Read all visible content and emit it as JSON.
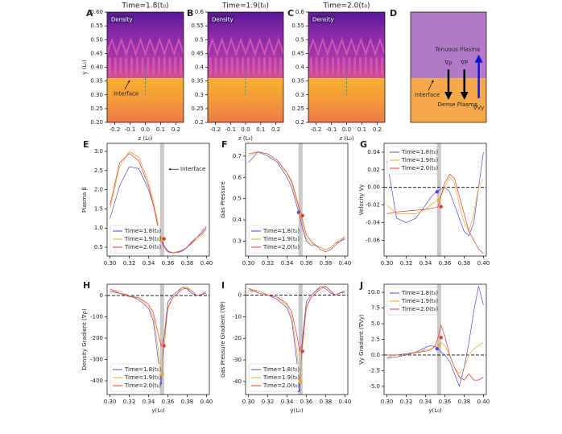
{
  "chart_data": [
    {
      "type": "image",
      "panel": "A",
      "title": "Time=1.8(t₀)",
      "label": "Density",
      "annotation": "Interface",
      "xlabel": "z (L₀)",
      "ylabel": "y (L₀)",
      "xlim": [
        -0.25,
        0.25
      ],
      "xticks": [
        -0.2,
        -0.1,
        {
          "value": 0,
          "label": "0.0"
        },
        0.1,
        0.2
      ],
      "ylim": [
        0.2,
        0.6
      ],
      "yticks": [
        {
          "value": 0.2,
          "label": "0.20"
        },
        0.25,
        {
          "value": 0.3,
          "label": "0.30"
        },
        0.35,
        {
          "value": 0.4,
          "label": "0.40"
        },
        0.45,
        {
          "value": 0.5,
          "label": "0.50"
        },
        0.55,
        {
          "value": 0.6,
          "label": "0.60"
        }
      ]
    },
    {
      "type": "image",
      "panel": "B",
      "title": "Time=1.9(t₀)",
      "label": "Density",
      "xlabel": "z (L₀)",
      "xlim": [
        -0.25,
        0.25
      ],
      "xticks": [
        -0.2,
        -0.1,
        {
          "value": 0,
          "label": "0.0"
        },
        0.1,
        0.2
      ],
      "ylim": [
        0.2,
        0.6
      ],
      "yticks": [
        0.2,
        0.25,
        0.3,
        0.35,
        0.4,
        0.45,
        0.5,
        0.55,
        0.6
      ]
    },
    {
      "type": "image",
      "panel": "C",
      "title": "Time=2.0(t₀)",
      "label": "Density",
      "xlabel": "z (L₀)",
      "xlim": [
        -0.25,
        0.25
      ],
      "xticks": [
        -0.2,
        -0.1,
        {
          "value": 0,
          "label": "0.0"
        },
        0.1,
        0.2
      ],
      "ylim": [
        0.2,
        0.6
      ],
      "yticks": [
        0.2,
        0.25,
        0.3,
        0.35,
        0.4,
        0.45,
        0.5,
        0.55,
        0.6
      ]
    },
    {
      "type": "diagram",
      "panel": "D",
      "top": "Tenuous Plasma",
      "bottom": "Dense Plasma",
      "annotation": "Interface",
      "grad_rho": "∇ρ",
      "grad_p": "∇P",
      "grad_v": "∇Vy"
    },
    {
      "type": "line",
      "panel": "E",
      "ylabel": "Plasma β",
      "annotation": "Interface",
      "legend": "lower left",
      "highlight_x": 0.354,
      "xlim": [
        0.297,
        0.403
      ],
      "xticks": [
        {
          "value": 0.3,
          "label": "0.30"
        },
        0.32,
        0.34,
        0.36,
        0.38,
        {
          "value": 0.4,
          "label": "0.40"
        }
      ],
      "ylim": [
        0.27,
        3.21
      ],
      "yticks": [
        0.5,
        {
          "value": 1,
          "label": "1.0"
        },
        1.5,
        {
          "value": 2,
          "label": "2.0"
        },
        2.5,
        {
          "value": 3,
          "label": "3.0"
        }
      ],
      "x": [
        0.3,
        0.31,
        0.32,
        0.33,
        0.34,
        0.345,
        0.35,
        0.353,
        0.356,
        0.36,
        0.365,
        0.37,
        0.375,
        0.38,
        0.385,
        0.39,
        0.395,
        0.4
      ],
      "series": [
        {
          "name": "Time=1.8(t₀)",
          "color": "#4a4ae8",
          "values": [
            1.25,
            2.1,
            2.6,
            2.55,
            2.0,
            1.6,
            1.0,
            0.7,
            0.5,
            0.38,
            0.35,
            0.38,
            0.42,
            0.5,
            0.65,
            0.75,
            0.85,
            1.0
          ],
          "point": {
            "x": 0.352,
            "y": 0.7
          }
        },
        {
          "name": "Time=1.9(t₀)",
          "color": "#f5a623",
          "values": [
            1.5,
            2.6,
            3.0,
            2.85,
            2.2,
            1.7,
            1.1,
            0.75,
            0.55,
            0.4,
            0.36,
            0.37,
            0.4,
            0.5,
            0.6,
            0.7,
            0.8,
            0.95
          ],
          "point": {
            "x": 0.354,
            "y": 0.7
          }
        },
        {
          "name": "Time=2.0(t₀)",
          "color": "#e8382e",
          "values": [
            1.6,
            2.7,
            2.95,
            2.75,
            2.1,
            1.6,
            1.0,
            0.72,
            0.55,
            0.4,
            0.35,
            0.36,
            0.4,
            0.5,
            0.62,
            0.75,
            0.9,
            1.05
          ],
          "point": {
            "x": 0.356,
            "y": 0.72
          }
        }
      ]
    },
    {
      "type": "line",
      "panel": "F",
      "ylabel": "Gas Pressure",
      "legend": "lower left",
      "highlight_x": 0.354,
      "xlim": [
        0.297,
        0.403
      ],
      "xticks": [
        {
          "value": 0.3,
          "label": "0.30"
        },
        0.32,
        0.34,
        0.36,
        0.38,
        {
          "value": 0.4,
          "label": "0.40"
        }
      ],
      "ylim": [
        0.23,
        0.76
      ],
      "yticks": [
        0.3,
        0.4,
        0.5,
        0.6,
        0.7
      ],
      "x": [
        0.3,
        0.31,
        0.32,
        0.33,
        0.34,
        0.345,
        0.35,
        0.353,
        0.356,
        0.36,
        0.365,
        0.37,
        0.375,
        0.38,
        0.385,
        0.39,
        0.395,
        0.4
      ],
      "series": [
        {
          "name": "Time=1.8(t₀)",
          "color": "#4a4ae8",
          "values": [
            0.67,
            0.72,
            0.7,
            0.67,
            0.6,
            0.55,
            0.47,
            0.42,
            0.36,
            0.3,
            0.28,
            0.28,
            0.27,
            0.26,
            0.27,
            0.29,
            0.3,
            0.31
          ],
          "point": {
            "x": 0.352,
            "y": 0.435
          }
        },
        {
          "name": "Time=1.9(t₀)",
          "color": "#f5a623",
          "values": [
            0.7,
            0.72,
            0.71,
            0.68,
            0.62,
            0.57,
            0.49,
            0.44,
            0.38,
            0.31,
            0.29,
            0.28,
            0.27,
            0.26,
            0.27,
            0.29,
            0.31,
            0.32
          ],
          "point": {
            "x": 0.354,
            "y": 0.425
          }
        },
        {
          "name": "Time=2.0(t₀)",
          "color": "#e8382e",
          "values": [
            0.71,
            0.72,
            0.71,
            0.68,
            0.62,
            0.58,
            0.5,
            0.45,
            0.4,
            0.33,
            0.3,
            0.28,
            0.26,
            0.25,
            0.26,
            0.28,
            0.3,
            0.32
          ],
          "point": {
            "x": 0.356,
            "y": 0.42
          }
        }
      ]
    },
    {
      "type": "line",
      "panel": "G",
      "ylabel": "Velocity Vy",
      "legend": "upper left",
      "zero_line": true,
      "highlight_x": 0.354,
      "xlim": [
        0.297,
        0.403
      ],
      "xticks": [
        {
          "value": 0.3,
          "label": "0.30"
        },
        0.32,
        0.34,
        0.36,
        0.38,
        {
          "value": 0.4,
          "label": "0.40"
        }
      ],
      "ylim": [
        -0.078,
        0.05
      ],
      "yticks": [
        -0.06,
        -0.04,
        -0.02,
        {
          "value": 0,
          "label": "0.00"
        },
        0.02,
        0.04
      ],
      "x": [
        0.3,
        0.31,
        0.32,
        0.33,
        0.34,
        0.345,
        0.35,
        0.353,
        0.356,
        0.36,
        0.365,
        0.37,
        0.375,
        0.38,
        0.385,
        0.39,
        0.395,
        0.4
      ],
      "series": [
        {
          "name": "Time=1.8(t₀)",
          "color": "#4a4ae8",
          "values": [
            0.03,
            -0.035,
            -0.04,
            -0.035,
            -0.02,
            -0.012,
            -0.006,
            -0.004,
            -0.002,
            0,
            -0.005,
            -0.02,
            -0.035,
            -0.05,
            -0.055,
            -0.04,
            0,
            0.04
          ],
          "point": {
            "x": 0.352,
            "y": -0.005
          }
        },
        {
          "name": "Time=1.9(t₀)",
          "color": "#f5a623",
          "values": [
            -0.02,
            -0.03,
            -0.03,
            -0.03,
            -0.025,
            -0.02,
            -0.016,
            -0.014,
            -0.01,
            0,
            0.012,
            0.005,
            -0.02,
            -0.04,
            -0.05,
            -0.03,
            0,
            0.01
          ],
          "point": {
            "x": 0.354,
            "y": -0.014
          }
        },
        {
          "name": "Time=2.0(t₀)",
          "color": "#e8382e",
          "values": [
            -0.03,
            -0.028,
            -0.027,
            -0.026,
            -0.025,
            -0.024,
            -0.023,
            -0.022,
            -0.01,
            0.005,
            0.015,
            0.01,
            -0.01,
            -0.03,
            -0.05,
            -0.06,
            -0.07,
            -0.075
          ],
          "point": {
            "x": 0.356,
            "y": -0.022
          }
        }
      ]
    },
    {
      "type": "line",
      "panel": "H",
      "ylabel": "Density Gradient (∇ρ)",
      "xlabel": "y(L₀)",
      "legend": "lower left",
      "zero_line": true,
      "highlight_x": 0.354,
      "xlim": [
        0.297,
        0.403
      ],
      "xticks": [
        {
          "value": 0.3,
          "label": "0.30"
        },
        0.32,
        0.34,
        0.36,
        0.38,
        {
          "value": 0.4,
          "label": "0.40"
        }
      ],
      "ylim": [
        -464,
        53
      ],
      "yticks": [
        -400,
        -300,
        -200,
        -100,
        0
      ],
      "x": [
        0.3,
        0.31,
        0.32,
        0.33,
        0.34,
        0.345,
        0.35,
        0.353,
        0.356,
        0.36,
        0.365,
        0.37,
        0.375,
        0.38,
        0.385,
        0.39,
        0.395,
        0.4
      ],
      "series": [
        {
          "name": "Time=1.8(t₀)",
          "color": "#4a4ae8",
          "values": [
            20,
            10,
            0,
            -20,
            -60,
            -120,
            -300,
            -410,
            -200,
            -30,
            0,
            20,
            40,
            30,
            10,
            0,
            5,
            20
          ],
          "point": {
            "x": 0.352,
            "y": -410
          }
        },
        {
          "name": "Time=1.9(t₀)",
          "color": "#f5a623",
          "values": [
            30,
            20,
            0,
            -10,
            -50,
            -100,
            -250,
            -370,
            -250,
            -50,
            -10,
            10,
            40,
            40,
            20,
            0,
            5,
            10
          ],
          "point": {
            "x": 0.354,
            "y": -370
          }
        },
        {
          "name": "Time=2.0(t₀)",
          "color": "#e8382e",
          "values": [
            30,
            10,
            -5,
            -10,
            -40,
            -80,
            -180,
            -235,
            -200,
            -60,
            -10,
            10,
            30,
            35,
            20,
            0,
            5,
            10
          ],
          "point": {
            "x": 0.356,
            "y": -235
          }
        }
      ]
    },
    {
      "type": "line",
      "panel": "I",
      "ylabel": "Gas Pressure Gradient (∇P)",
      "xlabel": "y(L₀)",
      "legend": "lower left",
      "zero_line": true,
      "highlight_x": 0.354,
      "xlim": [
        0.297,
        0.403
      ],
      "xticks": [
        {
          "value": 0.3,
          "label": "0.30"
        },
        0.32,
        0.34,
        0.36,
        0.38,
        {
          "value": 0.4,
          "label": "0.40"
        }
      ],
      "ylim": [
        -46,
        5
      ],
      "yticks": [
        -40,
        -30,
        -20,
        -10,
        0
      ],
      "x": [
        0.3,
        0.31,
        0.32,
        0.33,
        0.34,
        0.345,
        0.35,
        0.353,
        0.356,
        0.36,
        0.365,
        0.37,
        0.375,
        0.38,
        0.385,
        0.39,
        0.395,
        0.4
      ],
      "series": [
        {
          "name": "Time=1.8(t₀)",
          "color": "#4a4ae8",
          "values": [
            2,
            2,
            0,
            -2,
            -6,
            -12,
            -30,
            -44,
            -20,
            -3,
            0,
            2,
            4,
            3,
            1,
            0,
            1,
            2
          ],
          "point": {
            "x": 0.352,
            "y": -44
          }
        },
        {
          "name": "Time=1.9(t₀)",
          "color": "#f5a623",
          "values": [
            3,
            2,
            0,
            -1,
            -5,
            -10,
            -25,
            -40,
            -25,
            -5,
            -1,
            1,
            4,
            4,
            2,
            0,
            1,
            1
          ],
          "point": {
            "x": 0.354,
            "y": -40
          }
        },
        {
          "name": "Time=2.0(t₀)",
          "color": "#e8382e",
          "values": [
            3,
            1,
            0,
            -1,
            -4,
            -8,
            -18,
            -26,
            -22,
            -6,
            -1,
            1,
            3,
            4,
            2,
            0,
            1,
            1
          ],
          "point": {
            "x": 0.356,
            "y": -26
          }
        }
      ]
    },
    {
      "type": "line",
      "panel": "J",
      "ylabel": "Vy Gradient (∇Vy)",
      "xlabel": "y(L₀)",
      "legend": "upper left",
      "zero_line": true,
      "highlight_x": 0.354,
      "xlim": [
        0.297,
        0.403
      ],
      "xticks": [
        {
          "value": 0.3,
          "label": "0.30"
        },
        0.32,
        0.34,
        0.36,
        0.38,
        {
          "value": 0.4,
          "label": "0.40"
        }
      ],
      "ylim": [
        -6.3,
        11.3
      ],
      "yticks": [
        {
          "value": -5,
          "label": "-5.0"
        },
        -2.5,
        {
          "value": 0,
          "label": "0.0"
        },
        2.5,
        {
          "value": 5,
          "label": "5.0"
        },
        7.5,
        {
          "value": 10,
          "label": "10.0"
        }
      ],
      "x": [
        0.3,
        0.31,
        0.32,
        0.33,
        0.34,
        0.345,
        0.35,
        0.353,
        0.356,
        0.36,
        0.365,
        0.37,
        0.375,
        0.38,
        0.385,
        0.39,
        0.395,
        0.4
      ],
      "series": [
        {
          "name": "Time=1.8(t₀)",
          "color": "#4a4ae8",
          "values": [
            -0.5,
            -0.3,
            0,
            0.5,
            1.2,
            1.5,
            1.3,
            1.0,
            0.5,
            0,
            -1,
            -3,
            -5,
            -2,
            2,
            7,
            11,
            8
          ],
          "point": {
            "x": 0.352,
            "y": 1.0
          }
        },
        {
          "name": "Time=1.9(t₀)",
          "color": "#f5a623",
          "values": [
            -0.3,
            0,
            0.2,
            0.5,
            0.8,
            1.0,
            1.2,
            1.6,
            2.0,
            1.5,
            0,
            -2,
            -3,
            -2,
            0,
            1,
            1.5,
            2
          ],
          "point": {
            "x": 0.354,
            "y": 1.6
          }
        },
        {
          "name": "Time=2.0(t₀)",
          "color": "#e8382e",
          "values": [
            0,
            0,
            0.2,
            0.4,
            0.6,
            0.8,
            1.5,
            2.8,
            4.8,
            3.0,
            0,
            -2,
            -3.5,
            -4,
            -3,
            -4,
            -4,
            -3.5
          ],
          "point": {
            "x": 0.356,
            "y": 2.8
          }
        }
      ]
    }
  ]
}
